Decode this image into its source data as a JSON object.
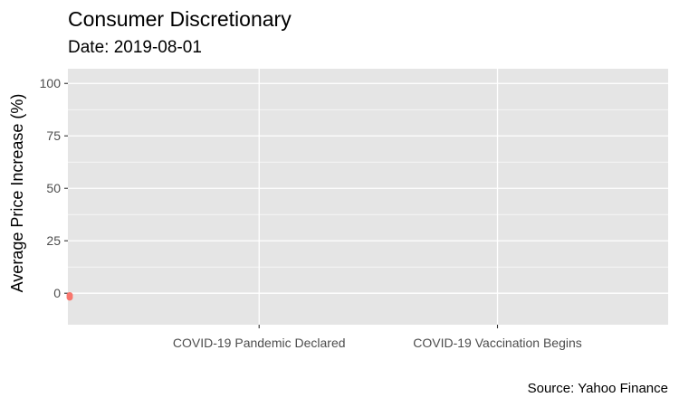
{
  "chart_data": {
    "type": "scatter",
    "title": "Consumer Discretionary",
    "subtitle": "Date: 2019-08-01",
    "ylabel": "Average Price Increase (%)",
    "xlabel": "",
    "caption": "Source: Yahoo Finance",
    "ylim": [
      -15,
      107
    ],
    "yticks": [
      0,
      25,
      50,
      75,
      100
    ],
    "xticks": [
      {
        "label": "COVID-19 Pandemic Declared",
        "date": "2020-03-11"
      },
      {
        "label": "COVID-19 Vaccination Begins",
        "date": "2020-12-14"
      }
    ],
    "xlim": [
      "2019-08-01",
      "2021-07-01"
    ],
    "points": [
      {
        "x": "2019-08-01",
        "y": -1
      },
      {
        "x": "2019-08-01",
        "y": -2
      }
    ],
    "point_color": "#F8766D",
    "panel_color": "#E5E5E5",
    "grid": true
  }
}
